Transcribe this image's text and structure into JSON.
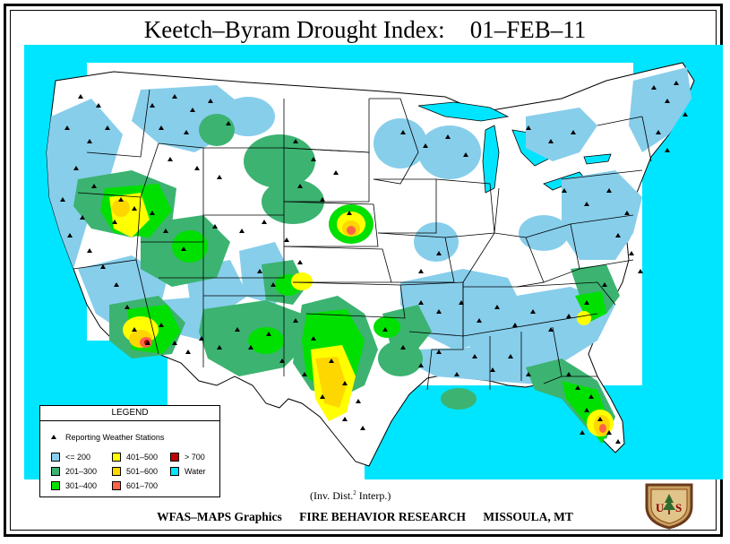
{
  "title": {
    "main": "Keetch–Byram Drought Index:",
    "date": "01–FEB–11"
  },
  "legend": {
    "heading": "LEGEND",
    "stations_label": "Reporting Weather Stations",
    "items": [
      {
        "label": "<= 200",
        "color": "#87CEEB"
      },
      {
        "label": "201–300",
        "color": "#3CB371"
      },
      {
        "label": "301–400",
        "color": "#00E000"
      },
      {
        "label": "401–500",
        "color": "#FFFF00"
      },
      {
        "label": "501–600",
        "color": "#FFD700"
      },
      {
        "label": "601–700",
        "color": "#FF6347"
      },
      {
        "label": "> 700",
        "color": "#C00000"
      },
      {
        "label": "Water",
        "color": "#00E5FF"
      }
    ]
  },
  "interp_note": {
    "prefix": "(Inv. Dist.",
    "sup": "2",
    "suffix": " Interp.)"
  },
  "footer": {
    "left": "WFAS–MAPS Graphics",
    "center": "FIRE BEHAVIOR RESEARCH",
    "right": "MISSOULA, MT"
  },
  "logo": {
    "text": "US",
    "icon": "forest-service-shield-icon"
  },
  "colors": {
    "water": "#00E5FF",
    "land": "#FFFFFF",
    "border": "#000000"
  }
}
